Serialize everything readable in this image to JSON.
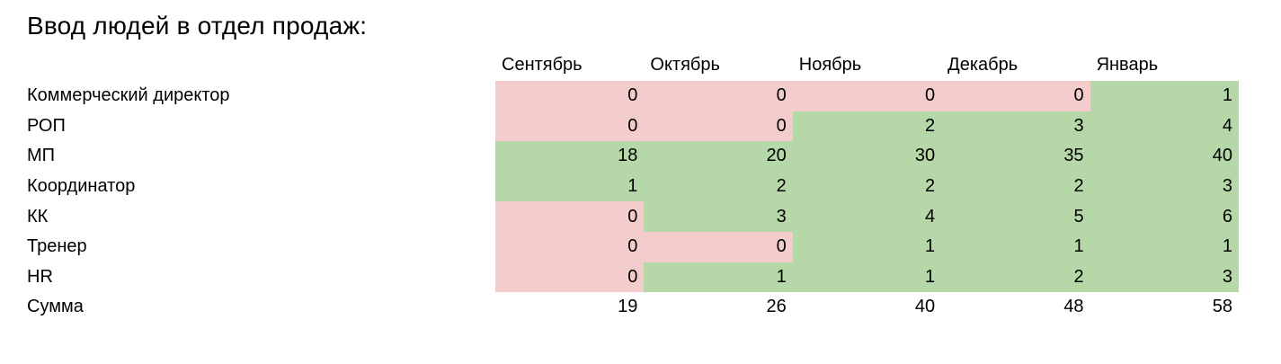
{
  "title": "Ввод людей в отдел продаж:",
  "colors": {
    "positive_bg": "#b6d7a8",
    "negative_bg": "#f4cccc",
    "text": "#000000",
    "background": "#ffffff"
  },
  "chart_data": {
    "type": "table",
    "title": "Ввод людей в отдел продаж:",
    "columns": [
      "Сентябрь",
      "Октябрь",
      "Ноябрь",
      "Декабрь",
      "Январь"
    ],
    "rows": [
      {
        "label": "Коммерческий директор",
        "values": [
          0,
          0,
          0,
          0,
          1
        ],
        "cell_colors": [
          "negative",
          "negative",
          "negative",
          "negative",
          "positive"
        ]
      },
      {
        "label": "РОП",
        "values": [
          0,
          0,
          2,
          3,
          4
        ],
        "cell_colors": [
          "negative",
          "negative",
          "positive",
          "positive",
          "positive"
        ]
      },
      {
        "label": "МП",
        "values": [
          18,
          20,
          30,
          35,
          40
        ],
        "cell_colors": [
          "positive",
          "positive",
          "positive",
          "positive",
          "positive"
        ]
      },
      {
        "label": "Координатор",
        "values": [
          1,
          2,
          2,
          2,
          3
        ],
        "cell_colors": [
          "positive",
          "positive",
          "positive",
          "positive",
          "positive"
        ]
      },
      {
        "label": "КК",
        "values": [
          0,
          3,
          4,
          5,
          6
        ],
        "cell_colors": [
          "negative",
          "positive",
          "positive",
          "positive",
          "positive"
        ]
      },
      {
        "label": "Тренер",
        "values": [
          0,
          0,
          1,
          1,
          1
        ],
        "cell_colors": [
          "negative",
          "negative",
          "positive",
          "positive",
          "positive"
        ]
      },
      {
        "label": "HR",
        "values": [
          0,
          1,
          1,
          2,
          3
        ],
        "cell_colors": [
          "negative",
          "positive",
          "positive",
          "positive",
          "positive"
        ]
      },
      {
        "label": "Сумма",
        "values": [
          19,
          26,
          40,
          48,
          58
        ],
        "cell_colors": [
          "none",
          "none",
          "none",
          "none",
          "none"
        ]
      }
    ]
  }
}
